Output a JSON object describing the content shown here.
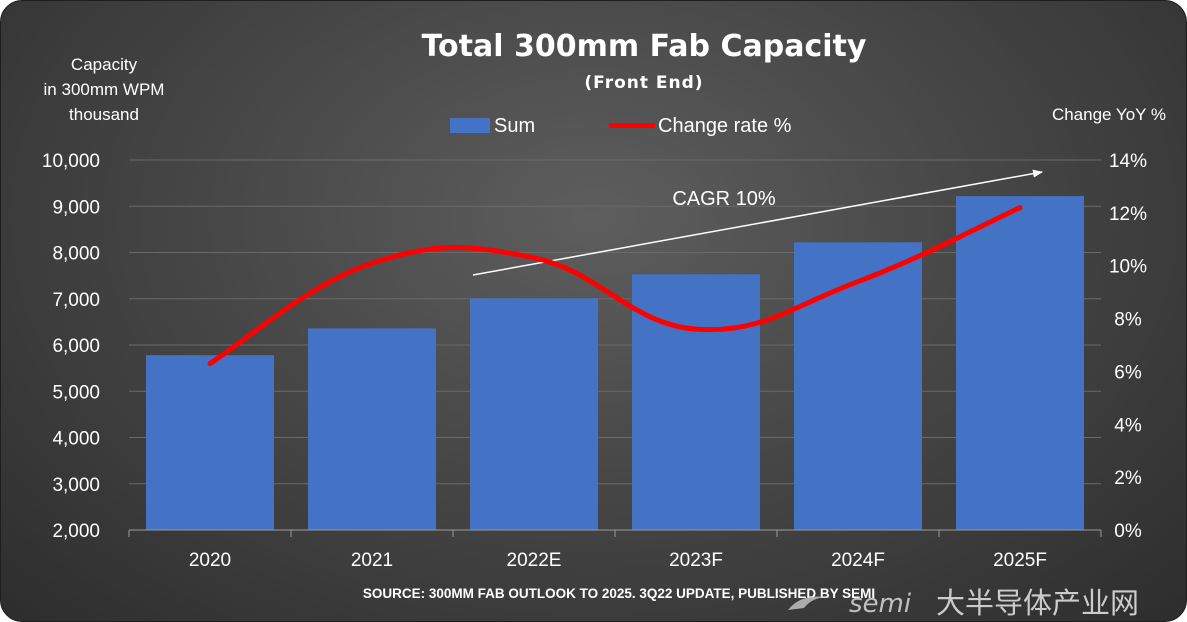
{
  "chart_data": {
    "type": "bar",
    "title": "Total 300mm Fab Capacity",
    "subtitle": "(Front End)",
    "ylabel_left": [
      "Capacity",
      "in 300mm WPM",
      "thousand"
    ],
    "ylabel_right": "Change YoY %",
    "categories": [
      "2020",
      "2021",
      "2022E",
      "2023F",
      "2024F",
      "2025F"
    ],
    "series": [
      {
        "name": "Sum",
        "kind": "bar",
        "axis": "left",
        "color": "#4472c4",
        "values": [
          5780,
          6360,
          7010,
          7530,
          8220,
          9220
        ]
      },
      {
        "name": "Change rate %",
        "kind": "line",
        "axis": "right",
        "color": "#ff0000",
        "values": [
          6.3,
          10.1,
          10.3,
          7.6,
          9.4,
          12.2
        ]
      }
    ],
    "ylim_left": [
      2000,
      10000
    ],
    "yticks_left": [
      "2,000",
      "3,000",
      "4,000",
      "5,000",
      "6,000",
      "7,000",
      "8,000",
      "9,000",
      "10,000"
    ],
    "ylim_right": [
      0,
      14
    ],
    "yticks_right": [
      "0%",
      "2%",
      "4%",
      "6%",
      "8%",
      "10%",
      "12%",
      "14%"
    ],
    "annotation": "CAGR 10%",
    "source": "SOURCE: 300MM FAB OUTLOOK TO 2025. 3Q22 UPDATE, PUBLISHED BY SEMI",
    "legend_position": "top-center",
    "grid": true
  },
  "watermark": {
    "brand": "semi",
    "site": "大半导体产业网"
  },
  "colors": {
    "text": "#ffffff",
    "grid": "#6a6a6a",
    "arrow": "#ffffff"
  }
}
